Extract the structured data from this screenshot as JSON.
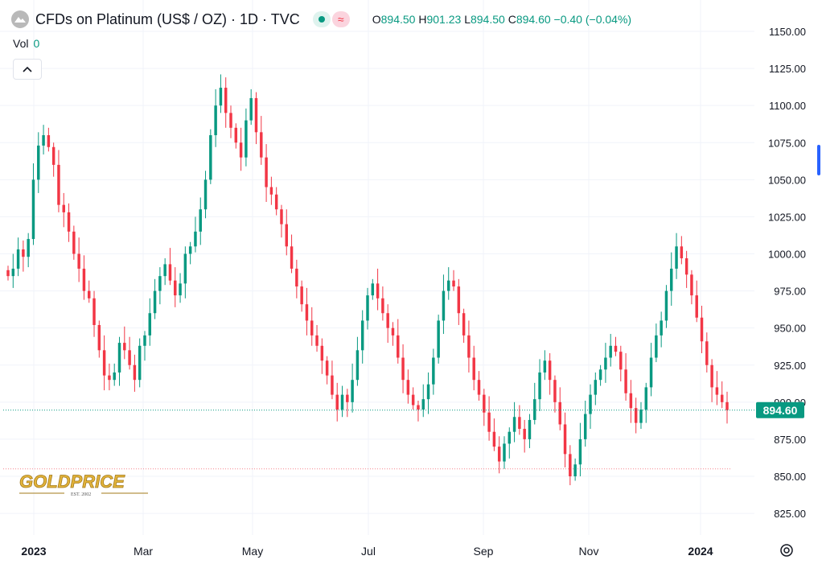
{
  "header": {
    "title": "CFDs on Platinum (US$ / OZ) · 1D · TVC",
    "ohlc": {
      "o_label": "O",
      "o_value": "894.50",
      "h_label": "H",
      "h_value": "901.23",
      "l_label": "L",
      "l_value": "894.50",
      "c_label": "C",
      "c_value": "894.60",
      "change": "−0.40 (−0.04%)"
    }
  },
  "volume": {
    "label": "Vol",
    "value": "0"
  },
  "logo": {
    "text": "GOLDPRICE",
    "tagline": "EST. 2002"
  },
  "colors": {
    "up": "#089981",
    "down": "#f23645",
    "last_price": "#089981",
    "grid": "#f0f3fa",
    "low_line": "#f23645"
  },
  "chart_data": {
    "type": "candlestick",
    "y_ticks": [
      "1150.00",
      "1125.00",
      "1100.00",
      "1075.00",
      "1050.00",
      "1025.00",
      "1000.00",
      "975.00",
      "950.00",
      "925.00",
      "900.00",
      "875.00",
      "850.00",
      "825.00"
    ],
    "x_ticks": [
      "2023",
      "Mar",
      "May",
      "Jul",
      "Sep",
      "Nov",
      "2024"
    ],
    "ylim": [
      815,
      1160
    ],
    "last_price": 894.6,
    "last_price_label": "894.60",
    "low_marker": 855,
    "grid": true,
    "closes": [
      985,
      990,
      1003,
      998,
      1010,
      1050,
      1073,
      1080,
      1072,
      1060,
      1033,
      1028,
      1015,
      1000,
      990,
      975,
      970,
      952,
      935,
      918,
      915,
      920,
      940,
      935,
      925,
      915,
      938,
      945,
      960,
      975,
      985,
      993,
      982,
      972,
      980,
      1000,
      1005,
      1015,
      1030,
      1050,
      1080,
      1100,
      1112,
      1095,
      1085,
      1075,
      1065,
      1090,
      1105,
      1082,
      1065,
      1045,
      1040,
      1030,
      1020,
      1005,
      990,
      978,
      966,
      955,
      945,
      938,
      928,
      918,
      905,
      895,
      905,
      900,
      915,
      935,
      955,
      972,
      980,
      970,
      960,
      950,
      945,
      930,
      915,
      905,
      898,
      895,
      902,
      912,
      930,
      955,
      975,
      982,
      978,
      960,
      945,
      930,
      915,
      905,
      893,
      880,
      870,
      860,
      872,
      880,
      890,
      882,
      875,
      888,
      902,
      920,
      928,
      915,
      900,
      885,
      865,
      850,
      858,
      875,
      892,
      905,
      915,
      922,
      930,
      938,
      934,
      922,
      906,
      896,
      886,
      895,
      910,
      930,
      945,
      955,
      975,
      990,
      1005,
      997,
      986,
      972,
      957,
      941,
      925,
      910,
      905,
      900,
      894.6
    ],
    "x_index_range": [
      0,
      148
    ]
  }
}
